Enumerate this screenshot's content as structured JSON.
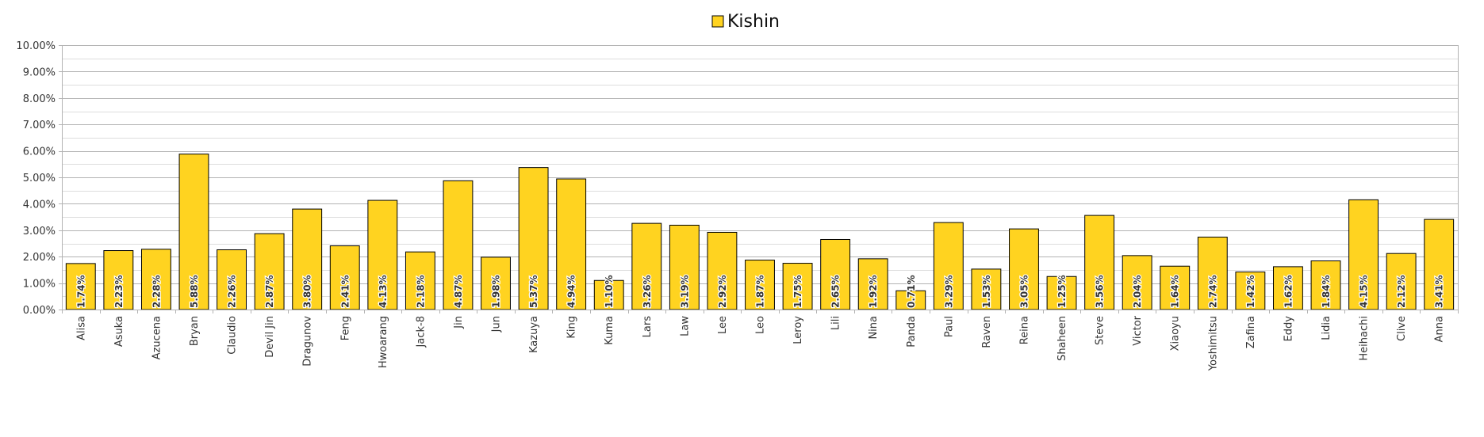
{
  "chart_data": {
    "type": "bar",
    "legend": {
      "position": "top-center"
    },
    "grid": true,
    "ylim": [
      0,
      10
    ],
    "y_tick_labels": [
      "0.00%",
      "1.00%",
      "2.00%",
      "3.00%",
      "4.00%",
      "5.00%",
      "6.00%",
      "7.00%",
      "8.00%",
      "9.00%",
      "10.00%"
    ],
    "categories": [
      "Alisa",
      "Asuka",
      "Azucena",
      "Bryan",
      "Claudio",
      "Devil Jin",
      "Dragunov",
      "Feng",
      "Hwoarang",
      "Jack-8",
      "Jin",
      "Jun",
      "Kazuya",
      "King",
      "Kuma",
      "Lars",
      "Law",
      "Lee",
      "Leo",
      "Leroy",
      "Lili",
      "Nina",
      "Panda",
      "Paul",
      "Raven",
      "Reina",
      "Shaheen",
      "Steve",
      "Victor",
      "Xiaoyu",
      "Yoshimitsu",
      "Zafina",
      "Eddy",
      "Lidia",
      "Heihachi",
      "Clive",
      "Anna"
    ],
    "series": [
      {
        "name": "Kishin",
        "color": "#ffd320",
        "values": [
          1.74,
          2.23,
          2.28,
          5.88,
          2.26,
          2.87,
          3.8,
          2.41,
          4.13,
          2.18,
          4.87,
          1.98,
          5.37,
          4.94,
          1.1,
          3.26,
          3.19,
          2.92,
          1.87,
          1.75,
          2.65,
          1.92,
          0.71,
          3.29,
          1.53,
          3.05,
          1.25,
          3.56,
          2.04,
          1.64,
          2.74,
          1.42,
          1.62,
          1.84,
          4.15,
          2.12,
          3.41
        ],
        "labels": [
          "1.74%",
          "2.23%",
          "2.28%",
          "5.88%",
          "2.26%",
          "2.87%",
          "3.80%",
          "2.41%",
          "4.13%",
          "2.18%",
          "4.87%",
          "1.98%",
          "5.37%",
          "4.94%",
          "1.10%",
          "3.26%",
          "3.19%",
          "2.92%",
          "1.87%",
          "1.75%",
          "2.65%",
          "1.92%",
          "0.71%",
          "3.29%",
          "1.53%",
          "3.05%",
          "1.25%",
          "3.56%",
          "2.04%",
          "1.64%",
          "2.74%",
          "1.42%",
          "1.62%",
          "1.84%",
          "4.15%",
          "2.12%",
          "3.41%"
        ]
      }
    ]
  }
}
